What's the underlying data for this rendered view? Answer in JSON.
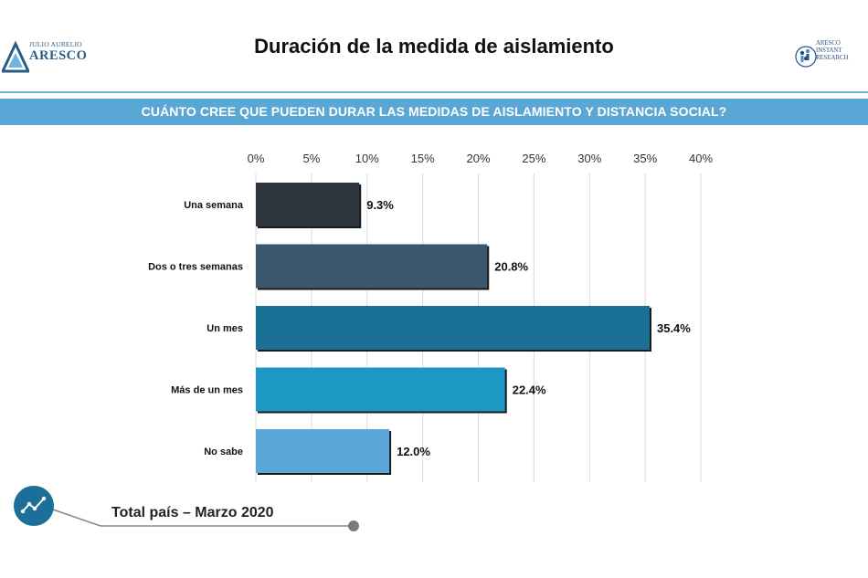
{
  "title": "Duración de la medida de aislamiento",
  "logo_left": {
    "top_text": "JULIO AURELIO",
    "main_text": "ARESCO"
  },
  "logo_right": {
    "text": "ARESCO\nINSTANT\nRESEARCH"
  },
  "banner": "CUÁNTO CREE QUE PUEDEN DURAR LAS MEDIDAS DE AISLAMIENTO Y DISTANCIA SOCIAL?",
  "footer": {
    "label": "Total país – Marzo 2020",
    "icon": "trend-line-icon"
  },
  "chart_data": {
    "type": "bar",
    "orientation": "horizontal",
    "categories": [
      "Una semana",
      "Dos o tres semanas",
      "Un mes",
      "Más de un mes",
      "No sabe"
    ],
    "values": [
      9.3,
      20.8,
      35.4,
      22.4,
      12.0
    ],
    "value_labels": [
      "9.3%",
      "20.8%",
      "35.4%",
      "22.4%",
      "12.0%"
    ],
    "colors": [
      "#2c353e",
      "#3a576d",
      "#1b7195",
      "#1d97c3",
      "#59a8d8"
    ],
    "x_ticks": [
      0,
      5,
      10,
      15,
      20,
      25,
      30,
      35,
      40
    ],
    "x_tick_labels": [
      "0%",
      "5%",
      "10%",
      "15%",
      "20%",
      "25%",
      "30%",
      "35%",
      "40%"
    ],
    "xlim": [
      0,
      40
    ],
    "x_axis_position": "top",
    "grid": true,
    "title": "",
    "xlabel": "",
    "ylabel": ""
  }
}
